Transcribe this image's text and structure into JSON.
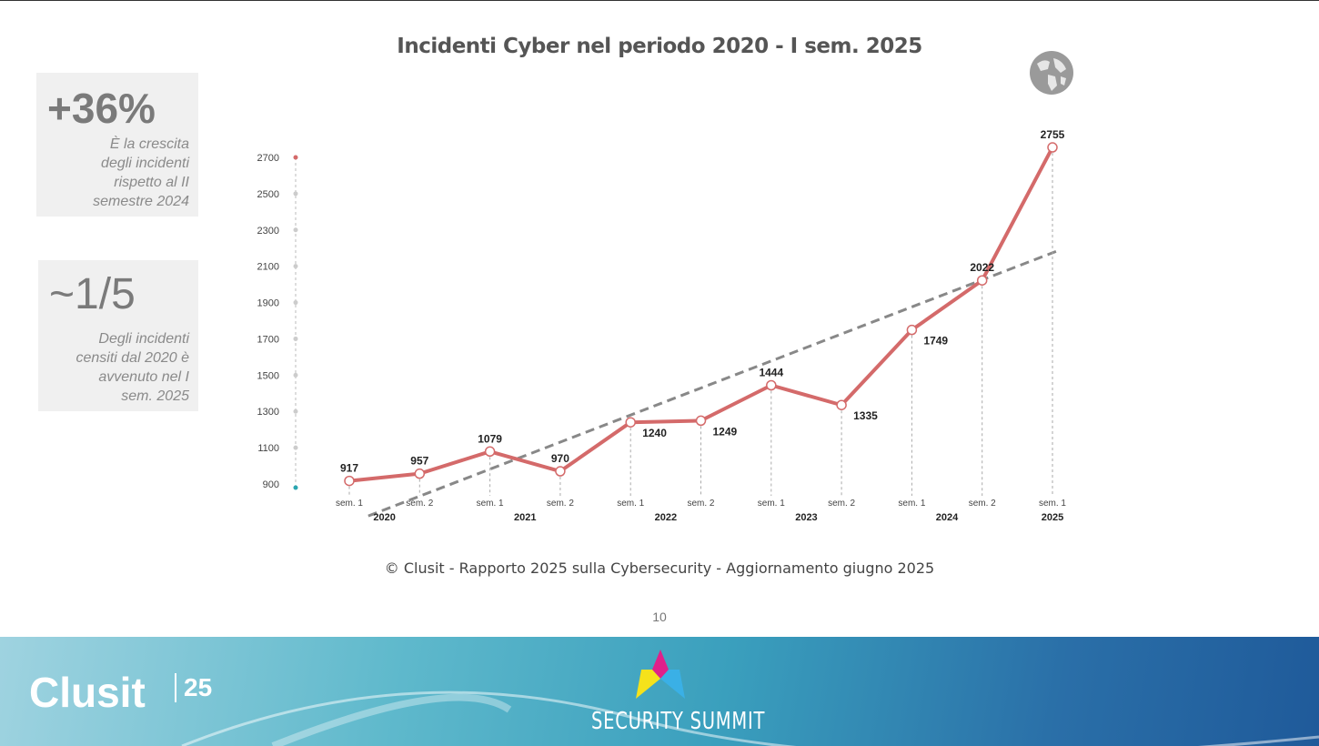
{
  "title": "Incidenti Cyber nel periodo 2020 - I sem. 2025",
  "stats": [
    {
      "value": "+36%",
      "text": [
        "È la crescita",
        "degli incidenti",
        "rispetto al II",
        "semestre 2024"
      ]
    },
    {
      "value": "~1/5",
      "text": [
        "Degli incidenti",
        "censiti dal 2020 è",
        "avvenuto nel I",
        "sem. 2025"
      ]
    }
  ],
  "icon": "globe-icon",
  "chart_data": {
    "type": "line",
    "x": [
      "sem. 1",
      "sem. 2",
      "sem. 1",
      "sem. 2",
      "sem. 1",
      "sem. 2",
      "sem. 1",
      "sem. 2",
      "sem. 1",
      "sem. 2",
      "sem. 1"
    ],
    "years": [
      {
        "label": "2020",
        "span": [
          0,
          1
        ]
      },
      {
        "label": "2021",
        "span": [
          2,
          3
        ]
      },
      {
        "label": "2022",
        "span": [
          4,
          5
        ]
      },
      {
        "label": "2023",
        "span": [
          6,
          7
        ]
      },
      {
        "label": "2024",
        "span": [
          8,
          9
        ]
      },
      {
        "label": "2025",
        "span": [
          10,
          10
        ]
      }
    ],
    "values": [
      917,
      957,
      1079,
      970,
      1240,
      1249,
      1444,
      1335,
      1749,
      2022,
      2755
    ],
    "label_below": [
      false,
      false,
      false,
      false,
      true,
      true,
      false,
      true,
      true,
      false,
      false
    ],
    "yticks": [
      900,
      1100,
      1300,
      1500,
      1700,
      1900,
      2100,
      2300,
      2500,
      2700
    ],
    "ylim": [
      900,
      2700
    ],
    "trendline": "linear",
    "line_color": "#d46a6a",
    "trend_color": "#888888",
    "grid": false
  },
  "source": "© Clusit - Rapporto 2025 sulla Cybersecurity - Aggiornamento giugno 2025",
  "page_number": "10",
  "footer": {
    "left_logo": "Clusit",
    "left_logo_badge": "25",
    "right_logo": "SECURITY SUMMIT"
  }
}
